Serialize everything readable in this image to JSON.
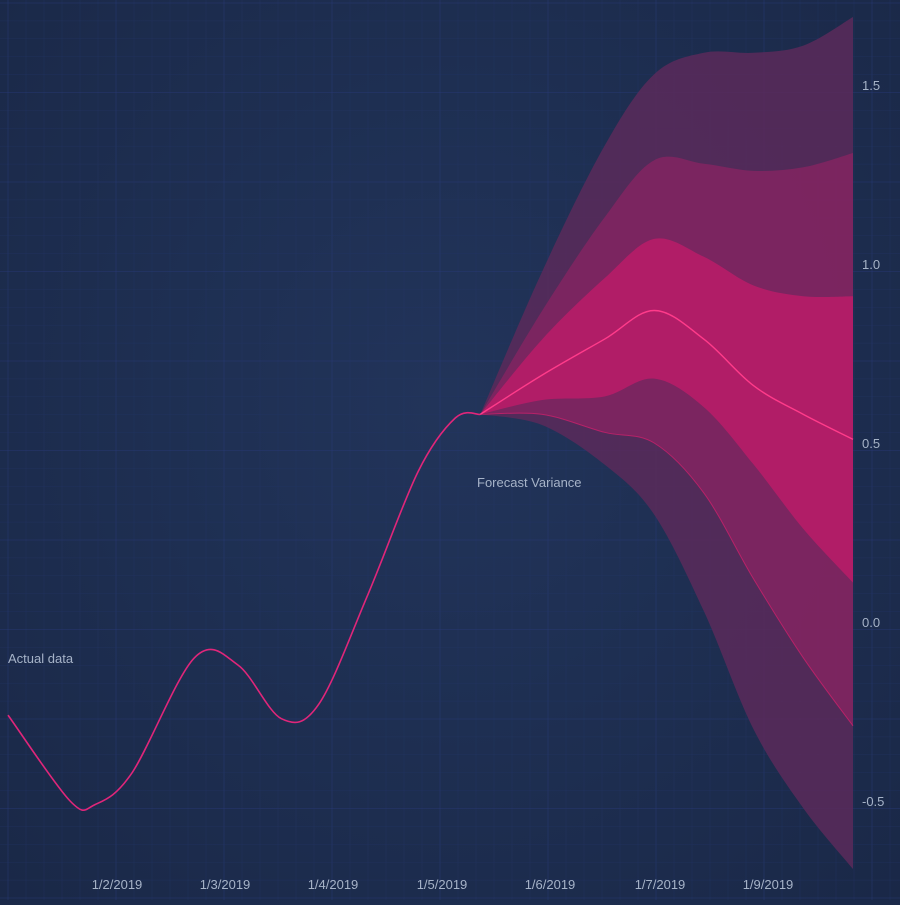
{
  "chart_data": {
    "type": "area",
    "title": "",
    "xlabel": "",
    "ylabel": "",
    "x_tick_labels": [
      "1/2/2019",
      "1/3/2019",
      "1/4/2019",
      "1/5/2019",
      "1/6/2019",
      "1/7/2019",
      "1/9/2019"
    ],
    "y_ticks": [
      1.5,
      1.0,
      0.5,
      0.0,
      -0.5
    ],
    "y_tick_labels": [
      "1.5",
      "1.0",
      "0.5",
      "0.0",
      "-0.5"
    ],
    "ylim": [
      -0.7,
      1.7
    ],
    "y_axis_position": "right",
    "grid": true,
    "annotations": {
      "actual": "Actual data",
      "forecast": "Forecast Variance"
    },
    "colors": {
      "actual_line": "#e0267a",
      "band_outer": "#5a2a5a",
      "band_middle": "#7f2560",
      "band_inner": "#b51c68",
      "median_line": "#ff3b8a"
    },
    "actual": {
      "x": [
        0.0,
        0.5,
        0.7,
        1.0,
        1.5,
        1.85,
        2.2,
        2.5,
        2.9,
        3.3,
        3.6,
        3.8
      ],
      "y": [
        -0.26,
        -0.5,
        -0.51,
        -0.42,
        -0.1,
        -0.12,
        -0.27,
        -0.23,
        0.08,
        0.42,
        0.57,
        0.58
      ]
    },
    "forecast": {
      "x": [
        3.8,
        4.3,
        4.8,
        5.2,
        5.6,
        6.0,
        6.4,
        6.8
      ],
      "median": [
        0.58,
        0.69,
        0.79,
        0.87,
        0.79,
        0.66,
        0.58,
        0.51
      ],
      "inner_upper": [
        0.58,
        0.79,
        0.96,
        1.07,
        1.02,
        0.94,
        0.91,
        0.91
      ],
      "inner_lower": [
        0.58,
        0.62,
        0.63,
        0.68,
        0.6,
        0.44,
        0.26,
        0.11
      ],
      "middle_upper": [
        0.58,
        0.87,
        1.13,
        1.29,
        1.28,
        1.26,
        1.27,
        1.31
      ],
      "middle_lower": [
        0.58,
        0.58,
        0.53,
        0.5,
        0.36,
        0.12,
        -0.1,
        -0.29
      ],
      "outer_upper": [
        0.58,
        0.98,
        1.33,
        1.53,
        1.59,
        1.59,
        1.61,
        1.69
      ],
      "outer_lower": [
        0.58,
        0.55,
        0.44,
        0.3,
        0.03,
        -0.3,
        -0.52,
        -0.69
      ]
    }
  }
}
